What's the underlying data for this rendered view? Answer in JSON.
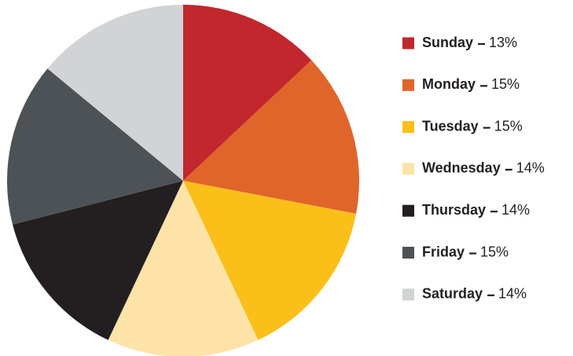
{
  "chart_data": {
    "type": "pie",
    "categories": [
      "Sunday",
      "Monday",
      "Tuesday",
      "Wednesday",
      "Thursday",
      "Friday",
      "Saturday"
    ],
    "values": [
      13,
      15,
      15,
      14,
      14,
      15,
      14
    ],
    "value_labels": [
      "13%",
      "15%",
      "15%",
      "14%",
      "14%",
      "15%",
      "14%"
    ],
    "colors": [
      "#c1272d",
      "#e0652a",
      "#fbbf1a",
      "#fde3a7",
      "#231f20",
      "#4d5256",
      "#d1d3d4"
    ],
    "legend": "right"
  }
}
